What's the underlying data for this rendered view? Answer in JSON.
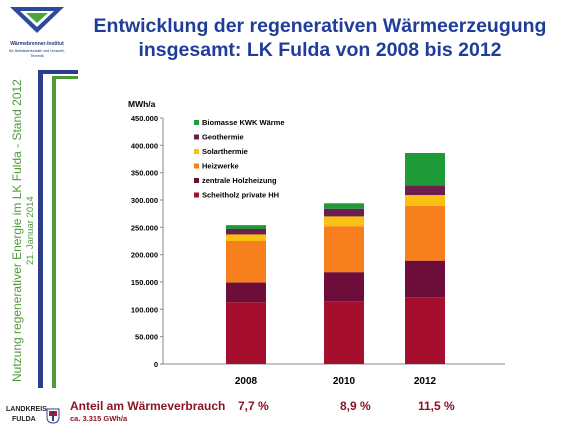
{
  "header": {
    "logo_line1": "Wärmebrenner-Institut",
    "logo_line2": "für Abfallwirtschaft und Umwelt-Technik",
    "title_line1": "Entwicklung der regenerativen Wärmeerzeugung",
    "title_line2": "insgesamt: LK Fulda von 2008 bis 2012"
  },
  "sidebar": {
    "text_main": "Nutzung regenerativer Energie im LK Fulda - Stand 2012",
    "text_date": "21. Januar 2014"
  },
  "footer": {
    "anteil_label": "Anteil am Wärmeverbrauch",
    "anteil_sub": "ca. 3.315 GWh/a",
    "percents": [
      "7,7 %",
      "8,9 %",
      "11,5 %"
    ],
    "logo_line1": "LANDKREIS",
    "logo_line2": "FULDA"
  },
  "chart_data": {
    "type": "bar",
    "stacked": true,
    "ylabel": "MWh/a",
    "ylim": [
      0,
      450000
    ],
    "yticks": [
      "0",
      "50.000",
      "100.000",
      "150.000",
      "200.000",
      "250.000",
      "300.000",
      "350.000",
      "400.000",
      "450.000"
    ],
    "ytick_values": [
      0,
      50000,
      100000,
      150000,
      200000,
      250000,
      300000,
      350000,
      400000,
      450000
    ],
    "categories": [
      "2008",
      "2010",
      "2012"
    ],
    "legend_placement": "top-left",
    "series": [
      {
        "name": "Scheitholz private HH",
        "color": "#a50f2d",
        "values": [
          113000,
          115000,
          122000
        ]
      },
      {
        "name": "zentrale Holzheizung",
        "color": "#6d0d3a",
        "values": [
          36000,
          53000,
          67000
        ]
      },
      {
        "name": "Heizwerke",
        "color": "#f77f1e",
        "values": [
          76000,
          84000,
          100000
        ]
      },
      {
        "name": "Solarthermie",
        "color": "#fbc112",
        "values": [
          12000,
          18000,
          20000
        ]
      },
      {
        "name": "Geothermie",
        "color": "#6e1e4e",
        "values": [
          10000,
          14000,
          18000
        ]
      },
      {
        "name": "Biomasse KWK Wärme",
        "color": "#1f9a39",
        "values": [
          7000,
          10000,
          59000
        ]
      }
    ]
  }
}
